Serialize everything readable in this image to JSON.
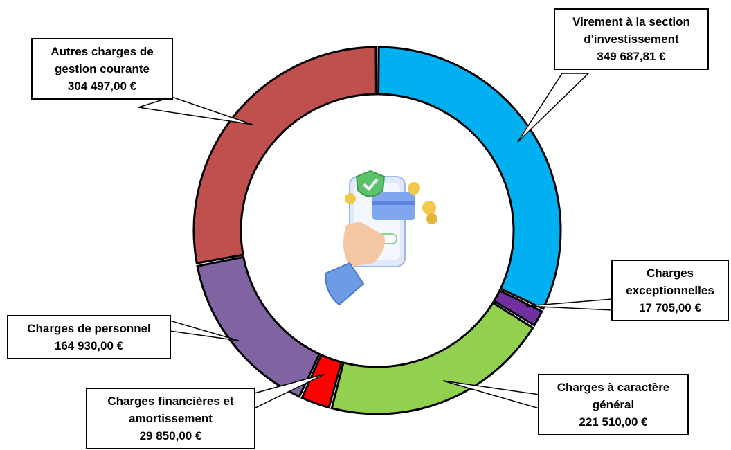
{
  "chart_data": {
    "type": "donut",
    "categories": [
      "Virement à la section d'investissement",
      "Charges exceptionnelles",
      "Charges à caractère général",
      "Charges financières et amortissement",
      "Charges de personnel",
      "Autres charges de gestion courante"
    ],
    "values": [
      349687.81,
      17705,
      221510,
      29850,
      164930,
      304497
    ],
    "value_labels": [
      "349 687,81 €",
      "17 705,00 €",
      "221 510,00 €",
      "29 850,00 €",
      "164 930,00 €",
      "304 497,00 €"
    ],
    "colors": [
      "#00b0f0",
      "#7030a0",
      "#92d050",
      "#ff0000",
      "#8064a2",
      "#c0504d"
    ]
  }
}
